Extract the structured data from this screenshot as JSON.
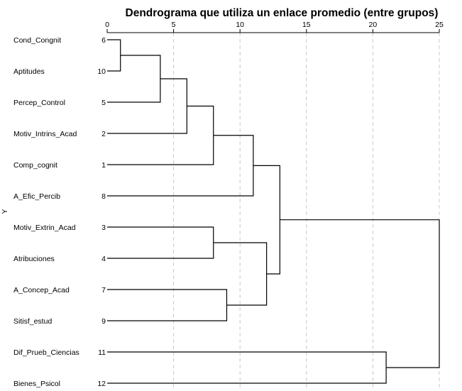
{
  "chart_data": {
    "type": "dendrogram",
    "title": "Dendrograma que utiliza un enlace promedio (entre grupos)",
    "ylabel": "Y",
    "xlabel": "",
    "xlim": [
      0,
      25
    ],
    "x_ticks": [
      0,
      5,
      10,
      15,
      20,
      25
    ],
    "grid": true,
    "leaves": [
      {
        "label": "Cond_Congnit",
        "number": "6"
      },
      {
        "label": "Aptitudes",
        "number": "10"
      },
      {
        "label": "Percep_Control",
        "number": "5"
      },
      {
        "label": "Motiv_Intrins_Acad",
        "number": "2"
      },
      {
        "label": "Comp_cognit",
        "number": "1"
      },
      {
        "label": "A_Efic_Percib",
        "number": "8"
      },
      {
        "label": "Motiv_Extrin_Acad",
        "number": "3"
      },
      {
        "label": "Atribuciones",
        "number": "4"
      },
      {
        "label": "A_Concep_Acad",
        "number": "7"
      },
      {
        "label": "Sitisf_estud",
        "number": "9"
      },
      {
        "label": "Dif_Prueb_Ciencias",
        "number": "11"
      },
      {
        "label": "Bienes_Psicol",
        "number": "12"
      }
    ],
    "merges": [
      {
        "a": "L0",
        "b": "L1",
        "distance": 1.0
      },
      {
        "a": "C0",
        "b": "L2",
        "distance": 4.0
      },
      {
        "a": "C1",
        "b": "L3",
        "distance": 6.0
      },
      {
        "a": "C2",
        "b": "L4",
        "distance": 8.0
      },
      {
        "a": "L6",
        "b": "L7",
        "distance": 8.0
      },
      {
        "a": "L8",
        "b": "L9",
        "distance": 9.0
      },
      {
        "a": "C3",
        "b": "L5",
        "distance": 11.0
      },
      {
        "a": "C4",
        "b": "C5",
        "distance": 12.0
      },
      {
        "a": "C6",
        "b": "C7",
        "distance": 13.0
      },
      {
        "a": "L10",
        "b": "L11",
        "distance": 21.0
      },
      {
        "a": "C8",
        "b": "C9",
        "distance": 25.0
      }
    ]
  }
}
